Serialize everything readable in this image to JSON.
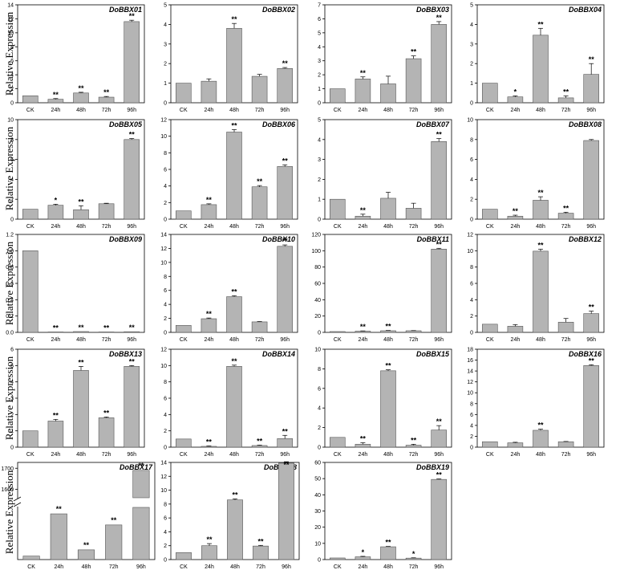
{
  "figure": {
    "ylabel": "Relative Expression",
    "bar_fill": "#b4b4b4",
    "bar_stroke": "#555555",
    "axis_color": "#000000"
  },
  "chart_data": [
    {
      "type": "bar",
      "title": "DoBBX01",
      "categories": [
        "CK",
        "24h",
        "48h",
        "72h",
        "96h"
      ],
      "values": [
        1,
        0.5,
        1.4,
        0.8,
        11.6
      ],
      "errors": [
        0,
        0.1,
        0.1,
        0.1,
        0.2
      ],
      "significance": [
        "",
        "**",
        "**",
        "**",
        "**"
      ],
      "ylim": [
        0,
        14
      ],
      "yticks": [
        0,
        2,
        4,
        6,
        8,
        10,
        12,
        14
      ]
    },
    {
      "type": "bar",
      "title": "DoBBX02",
      "categories": [
        "CK",
        "24h",
        "48h",
        "72h",
        "96h"
      ],
      "values": [
        1,
        1.1,
        3.8,
        1.35,
        1.75
      ],
      "errors": [
        0,
        0.12,
        0.25,
        0.1,
        0.05
      ],
      "significance": [
        "",
        "",
        "**",
        "",
        "**"
      ],
      "ylim": [
        0,
        5
      ],
      "yticks": [
        0,
        1,
        2,
        3,
        4,
        5
      ]
    },
    {
      "type": "bar",
      "title": "DoBBX03",
      "categories": [
        "CK",
        "24h",
        "48h",
        "72h",
        "96h"
      ],
      "values": [
        1,
        1.7,
        1.35,
        3.15,
        5.6
      ],
      "errors": [
        0,
        0.15,
        0.55,
        0.2,
        0.2
      ],
      "significance": [
        "",
        "**",
        "",
        "**",
        "**"
      ],
      "ylim": [
        0,
        7
      ],
      "yticks": [
        0,
        1,
        2,
        3,
        4,
        5,
        6,
        7
      ]
    },
    {
      "type": "bar",
      "title": "DoBBX04",
      "categories": [
        "CK",
        "24h",
        "48h",
        "72h",
        "96h"
      ],
      "values": [
        1,
        0.3,
        3.45,
        0.25,
        1.45
      ],
      "errors": [
        0,
        0.05,
        0.35,
        0.1,
        0.55
      ],
      "significance": [
        "",
        "*",
        "**",
        "**",
        "**"
      ],
      "ylim": [
        0,
        5
      ],
      "yticks": [
        0,
        1,
        2,
        3,
        4,
        5
      ]
    },
    {
      "type": "bar",
      "title": "DoBBX05",
      "categories": [
        "CK",
        "24h",
        "48h",
        "72h",
        "96h"
      ],
      "values": [
        1,
        1.4,
        0.95,
        1.55,
        8.0
      ],
      "errors": [
        0,
        0.1,
        0.4,
        0.05,
        0.1
      ],
      "significance": [
        "",
        "*",
        "**",
        "",
        "**"
      ],
      "ylim": [
        0,
        10
      ],
      "yticks": [
        0,
        2,
        4,
        6,
        8,
        10
      ]
    },
    {
      "type": "bar",
      "title": "DoBBX06",
      "categories": [
        "CK",
        "24h",
        "48h",
        "72h",
        "96h"
      ],
      "values": [
        1,
        1.75,
        10.5,
        3.9,
        6.35
      ],
      "errors": [
        0,
        0.1,
        0.3,
        0.15,
        0.2
      ],
      "significance": [
        "",
        "**",
        "**",
        "**",
        "**"
      ],
      "ylim": [
        0,
        12
      ],
      "yticks": [
        0,
        2,
        4,
        6,
        8,
        10,
        12
      ]
    },
    {
      "type": "bar",
      "title": "DoBBX07",
      "categories": [
        "CK",
        "24h",
        "48h",
        "72h",
        "96h"
      ],
      "values": [
        1,
        0.15,
        1.05,
        0.55,
        3.9
      ],
      "errors": [
        0,
        0.1,
        0.3,
        0.25,
        0.15
      ],
      "significance": [
        "",
        "**",
        "",
        "",
        "**"
      ],
      "ylim": [
        0,
        5
      ],
      "yticks": [
        0,
        1,
        2,
        3,
        4,
        5
      ]
    },
    {
      "type": "bar",
      "title": "DoBBX08",
      "categories": [
        "CK",
        "24h",
        "48h",
        "72h",
        "96h"
      ],
      "values": [
        1,
        0.3,
        1.9,
        0.6,
        7.9
      ],
      "errors": [
        0,
        0.1,
        0.35,
        0.1,
        0.1
      ],
      "significance": [
        "",
        "**",
        "**",
        "**",
        ""
      ],
      "ylim": [
        0,
        10
      ],
      "yticks": [
        0,
        2,
        4,
        6,
        8,
        10
      ]
    },
    {
      "type": "bar",
      "title": "DoBBX09",
      "categories": [
        "CK",
        "24h",
        "48h",
        "72h",
        "96h"
      ],
      "values": [
        1.0,
        0.005,
        0.01,
        0.005,
        0.008
      ],
      "errors": [
        0,
        0,
        0,
        0,
        0
      ],
      "significance": [
        "",
        "**",
        "**",
        "**",
        "**"
      ],
      "ylim": [
        0,
        1.2
      ],
      "yticks": [
        0.0,
        0.2,
        0.4,
        0.6,
        0.8,
        1.0,
        1.2
      ],
      "tick_decimals": 1
    },
    {
      "type": "bar",
      "title": "DoBBX10",
      "categories": [
        "CK",
        "24h",
        "48h",
        "72h",
        "96h"
      ],
      "values": [
        1,
        1.95,
        5.1,
        1.5,
        12.3
      ],
      "errors": [
        0,
        0.1,
        0.15,
        0.05,
        0.2
      ],
      "significance": [
        "",
        "**",
        "**",
        "",
        "**"
      ],
      "ylim": [
        0,
        14
      ],
      "yticks": [
        0,
        2,
        4,
        6,
        8,
        10,
        12,
        14
      ]
    },
    {
      "type": "bar",
      "title": "DoBBX11",
      "categories": [
        "CK",
        "24h",
        "48h",
        "72h",
        "96h"
      ],
      "values": [
        1,
        1.5,
        2.0,
        2.0,
        102
      ],
      "errors": [
        0,
        0.3,
        0.3,
        0.2,
        1.0
      ],
      "significance": [
        "",
        "**",
        "**",
        "",
        "**"
      ],
      "ylim": [
        0,
        120
      ],
      "yticks": [
        0,
        20,
        40,
        60,
        80,
        100,
        120
      ]
    },
    {
      "type": "bar",
      "title": "DoBBX12",
      "categories": [
        "CK",
        "24h",
        "48h",
        "72h",
        "96h"
      ],
      "values": [
        1,
        0.75,
        9.95,
        1.25,
        2.3
      ],
      "errors": [
        0,
        0.2,
        0.25,
        0.45,
        0.3
      ],
      "significance": [
        "",
        "",
        "**",
        "",
        "**"
      ],
      "ylim": [
        0,
        12
      ],
      "yticks": [
        0,
        2,
        4,
        6,
        8,
        10,
        12
      ]
    },
    {
      "type": "bar",
      "title": "DoBBX13",
      "categories": [
        "CK",
        "24h",
        "48h",
        "72h",
        "96h"
      ],
      "values": [
        1,
        1.6,
        4.7,
        1.8,
        4.95
      ],
      "errors": [
        0,
        0.1,
        0.25,
        0.05,
        0.05
      ],
      "significance": [
        "",
        "**",
        "**",
        "**",
        "**"
      ],
      "ylim": [
        0,
        6
      ],
      "yticks": [
        0,
        1,
        2,
        3,
        4,
        5,
        6
      ]
    },
    {
      "type": "bar",
      "title": "DoBBX14",
      "categories": [
        "CK",
        "24h",
        "48h",
        "72h",
        "96h"
      ],
      "values": [
        1,
        0.1,
        9.9,
        0.2,
        1.05
      ],
      "errors": [
        0,
        0.05,
        0.15,
        0.05,
        0.4
      ],
      "significance": [
        "",
        "**",
        "**",
        "**",
        "**"
      ],
      "ylim": [
        0,
        12
      ],
      "yticks": [
        0,
        2,
        4,
        6,
        8,
        10,
        12
      ]
    },
    {
      "type": "bar",
      "title": "DoBBX15",
      "categories": [
        "CK",
        "24h",
        "48h",
        "72h",
        "96h"
      ],
      "values": [
        1,
        0.3,
        7.8,
        0.2,
        1.75
      ],
      "errors": [
        0,
        0.15,
        0.1,
        0.1,
        0.45
      ],
      "significance": [
        "",
        "**",
        "**",
        "**",
        "**"
      ],
      "ylim": [
        0,
        10
      ],
      "yticks": [
        0,
        2,
        4,
        6,
        8,
        10
      ]
    },
    {
      "type": "bar",
      "title": "DoBBX16",
      "categories": [
        "CK",
        "24h",
        "48h",
        "72h",
        "96h"
      ],
      "values": [
        1,
        0.8,
        3.1,
        1.0,
        15.0
      ],
      "errors": [
        0,
        0.1,
        0.2,
        0.05,
        0.15
      ],
      "significance": [
        "",
        "",
        "**",
        "",
        "**"
      ],
      "ylim": [
        0,
        18
      ],
      "yticks": [
        0,
        2,
        4,
        6,
        8,
        10,
        12,
        14,
        16,
        18
      ]
    },
    {
      "type": "bar",
      "title": "DoBBX17",
      "categories": [
        "CK",
        "24h",
        "48h",
        "72h",
        "96h"
      ],
      "values": [
        18,
        235,
        50,
        178,
        1690
      ],
      "errors": [
        0,
        0,
        0,
        0,
        0
      ],
      "significance": [
        "",
        "**",
        "**",
        "**",
        "**"
      ],
      "y_break": true,
      "yticks_upper": [
        1600,
        1700
      ]
    },
    {
      "type": "bar",
      "title": "DoBBX18",
      "categories": [
        "CK",
        "24h",
        "48h",
        "72h",
        "96h"
      ],
      "values": [
        1,
        2.0,
        8.6,
        1.95,
        13.9
      ],
      "errors": [
        0,
        0.3,
        0.15,
        0.1,
        0.2
      ],
      "significance": [
        "",
        "**",
        "**",
        "**",
        "**"
      ],
      "ylim": [
        0,
        14
      ],
      "yticks": [
        0,
        2,
        4,
        6,
        8,
        10,
        12,
        14
      ]
    },
    {
      "type": "bar",
      "title": "DoBBX19",
      "categories": [
        "CK",
        "24h",
        "48h",
        "72h",
        "96h"
      ],
      "values": [
        1,
        1.7,
        7.9,
        0.9,
        49.5
      ],
      "errors": [
        0,
        0.3,
        0.2,
        0.2,
        0.3
      ],
      "significance": [
        "",
        "*",
        "**",
        "*",
        "**"
      ],
      "ylim": [
        0,
        60
      ],
      "yticks": [
        0,
        10,
        20,
        30,
        40,
        50,
        60
      ]
    }
  ]
}
